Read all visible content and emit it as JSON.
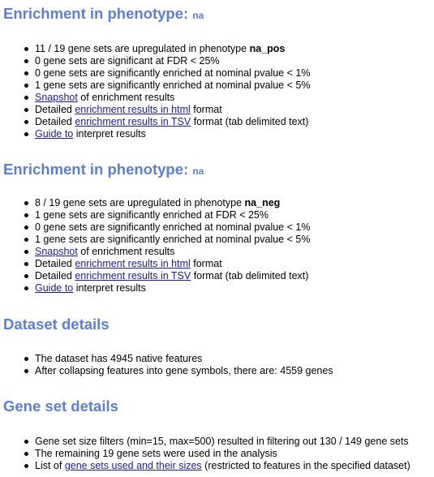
{
  "sections": [
    {
      "heading": "Enrichment in phenotype: ",
      "heading_suffix": "na",
      "items": [
        {
          "text": "11 / 19 gene sets are upregulated in phenotype ",
          "bold": "na_pos"
        },
        {
          "text": "0 gene sets are significant at FDR < 25%"
        },
        {
          "text": "0 gene sets are significantly enriched at nominal pvalue < 1%"
        },
        {
          "text": "1 gene sets are significantly enriched at nominal pvalue < 5%"
        },
        {
          "link": "Snapshot",
          "after": " of enrichment results"
        },
        {
          "before": "Detailed ",
          "link": "enrichment results in html",
          "after": " format"
        },
        {
          "before": "Detailed ",
          "link": "enrichment results in TSV",
          "after": " format (tab delimited text)"
        },
        {
          "link": "Guide to",
          "after": " interpret results"
        }
      ]
    },
    {
      "heading": "Enrichment in phenotype: ",
      "heading_suffix": "na",
      "items": [
        {
          "text": "8 / 19 gene sets are upregulated in phenotype ",
          "bold": "na_neg"
        },
        {
          "text": "1 gene sets are significantly enriched at FDR < 25%"
        },
        {
          "text": "0 gene sets are significantly enriched at nominal pvalue < 1%"
        },
        {
          "text": "1 gene sets are significantly enriched at nominal pvalue < 5%"
        },
        {
          "link": "Snapshot",
          "after": " of enrichment results"
        },
        {
          "before": "Detailed ",
          "link": "enrichment results in html",
          "after": " format"
        },
        {
          "before": "Detailed ",
          "link": "enrichment results in TSV",
          "after": " format (tab delimited text)"
        },
        {
          "link": "Guide to",
          "after": " interpret results"
        }
      ]
    },
    {
      "heading": "Dataset details",
      "items": [
        {
          "text": "The dataset has 4945 native features"
        },
        {
          "text": "After collapsing features into gene symbols, there are: 4559 genes"
        }
      ]
    },
    {
      "heading": "Gene set details",
      "items": [
        {
          "text": "Gene set size filters (min=15, max=500) resulted in filtering out 130 / 149 gene sets"
        },
        {
          "text": "The remaining 19 gene sets were used in the analysis"
        },
        {
          "before": "List of ",
          "link": "gene sets used and their sizes",
          "after": " (restricted to features in the specified dataset)"
        }
      ]
    }
  ]
}
